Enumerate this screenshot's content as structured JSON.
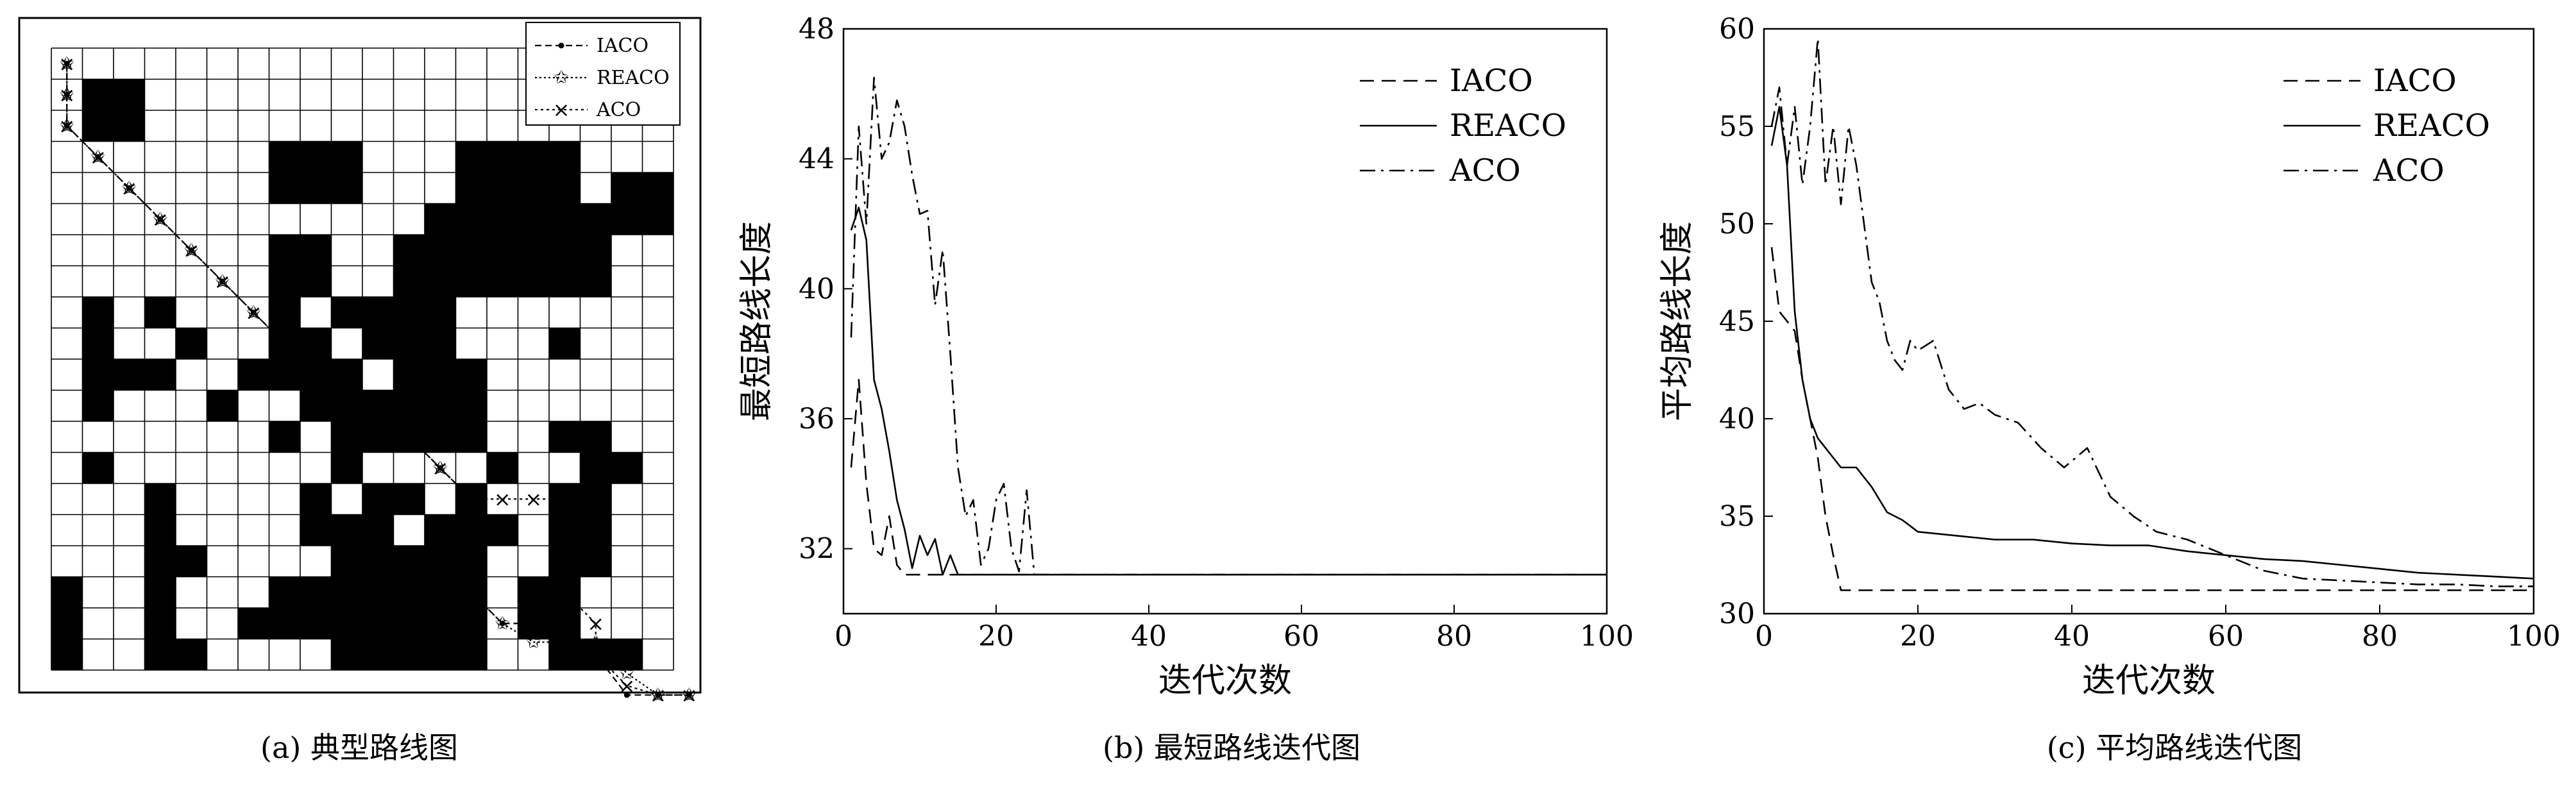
{
  "captions": {
    "a": "(a)  典型路线图",
    "b": "(b)  最短路线迭代图",
    "c": "(c)  平均路线迭代图"
  },
  "grid_map": {
    "rows": 20,
    "cols": 20,
    "obstacles": [
      "00000000000000000000",
      "01100000000000000000",
      "01100000000000000000",
      "00000001110001111000",
      "00000001110001111011",
      "00000000000011111111",
      "00000001100111111100",
      "00000001100111111100",
      "01010001011110000000",
      "01001001101110001000",
      "01110011110111000000",
      "01000100111111000000",
      "00000001011111001100",
      "01000000010000100110",
      "00010000101101001100",
      "00010000111011101100",
      "00011000011111001100",
      "10010001111111011000",
      "10010011111111011000",
      "10011000011111001110"
    ],
    "legend": [
      "IACO",
      "REACO",
      "ACO"
    ]
  },
  "chart_data": [
    {
      "type": "line",
      "title": "",
      "xlabel": "迭代次数",
      "ylabel": "最短路线长度",
      "xlim": [
        0,
        100
      ],
      "ylim": [
        30,
        48
      ],
      "xticks": [
        0,
        20,
        40,
        60,
        80,
        100
      ],
      "yticks": [
        32,
        36,
        40,
        44,
        48
      ],
      "legend_position": "top-right",
      "series": [
        {
          "name": "IACO",
          "style": "dashed",
          "x": [
            1,
            2,
            3,
            4,
            5,
            6,
            7,
            8,
            9,
            10,
            100
          ],
          "y": [
            34.5,
            37.2,
            34,
            32,
            31.8,
            33,
            31.5,
            31.2,
            31.2,
            31.2,
            31.2
          ]
        },
        {
          "name": "REACO",
          "style": "solid",
          "x": [
            1,
            2,
            3,
            4,
            5,
            6,
            7,
            8,
            9,
            10,
            11,
            12,
            13,
            14,
            15,
            16,
            100
          ],
          "y": [
            41.8,
            42.5,
            41.5,
            37.2,
            36.3,
            35,
            33.5,
            32.6,
            31.4,
            32.4,
            31.8,
            32.3,
            31.2,
            31.8,
            31.2,
            31.2,
            31.2
          ]
        },
        {
          "name": "ACO",
          "style": "dashdot",
          "x": [
            1,
            2,
            3,
            4,
            5,
            6,
            7,
            8,
            9,
            10,
            11,
            12,
            13,
            14,
            15,
            16,
            17,
            18,
            19,
            20,
            21,
            22,
            23,
            24,
            25,
            100
          ],
          "y": [
            38.5,
            45,
            42,
            46.5,
            44,
            44.5,
            45.8,
            45,
            43.5,
            42.3,
            42.4,
            39.5,
            41.2,
            38,
            34.5,
            33,
            33.5,
            31.5,
            32,
            33.5,
            34,
            32,
            31.3,
            33.8,
            31.2,
            31.2
          ]
        }
      ]
    },
    {
      "type": "line",
      "title": "",
      "xlabel": "迭代次数",
      "ylabel": "平均路线长度",
      "xlim": [
        0,
        100
      ],
      "ylim": [
        30,
        60
      ],
      "xticks": [
        0,
        20,
        40,
        60,
        80,
        100
      ],
      "yticks": [
        30,
        35,
        40,
        45,
        50,
        55,
        60
      ],
      "legend_position": "top-right",
      "series": [
        {
          "name": "IACO",
          "style": "dashed",
          "x": [
            1,
            2,
            3,
            4,
            5,
            6,
            7,
            8,
            9,
            10,
            100
          ],
          "y": [
            48.8,
            45.5,
            45,
            44.5,
            42,
            40,
            38,
            35,
            33,
            31.2,
            31.2
          ]
        },
        {
          "name": "REACO",
          "style": "solid",
          "x": [
            1,
            2,
            3,
            4,
            5,
            6,
            7,
            8,
            9,
            10,
            12,
            14,
            16,
            18,
            20,
            25,
            30,
            35,
            40,
            45,
            50,
            55,
            60,
            65,
            70,
            75,
            80,
            85,
            90,
            95,
            100
          ],
          "y": [
            54,
            56,
            53,
            45.5,
            42,
            40,
            39,
            38.5,
            38,
            37.5,
            37.5,
            36.5,
            35.2,
            34.8,
            34.2,
            34,
            33.8,
            33.8,
            33.6,
            33.5,
            33.5,
            33.2,
            33,
            32.8,
            32.7,
            32.5,
            32.3,
            32.1,
            32,
            31.9,
            31.8
          ]
        },
        {
          "name": "ACO",
          "style": "dashdot",
          "x": [
            1,
            2,
            3,
            4,
            5,
            6,
            7,
            8,
            9,
            10,
            11,
            12,
            13,
            14,
            15,
            16,
            17,
            18,
            19,
            20,
            22,
            24,
            26,
            28,
            30,
            33,
            36,
            39,
            42,
            45,
            48,
            51,
            55,
            60,
            65,
            70,
            75,
            80,
            85,
            90,
            95,
            100
          ],
          "y": [
            55,
            57,
            53,
            56,
            52,
            55,
            59.5,
            52,
            55,
            51,
            55,
            53,
            50,
            47,
            46,
            44,
            43,
            42.5,
            44,
            43.5,
            44,
            41.5,
            40.5,
            40.8,
            40.2,
            39.8,
            38.5,
            37.5,
            38.5,
            36,
            35,
            34.2,
            33.8,
            33,
            32.2,
            31.8,
            31.7,
            31.6,
            31.5,
            31.5,
            31.4,
            31.4
          ]
        }
      ]
    }
  ]
}
